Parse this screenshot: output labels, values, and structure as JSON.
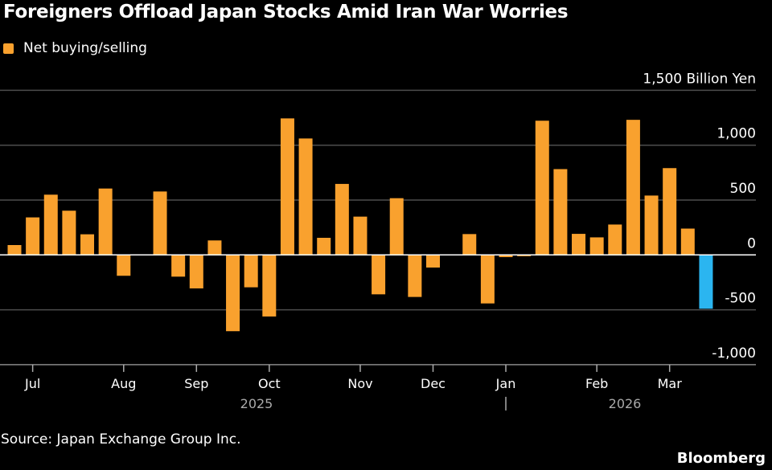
{
  "chart_data": {
    "type": "bar",
    "title": "Foreigners Offload Japan Stocks Amid Iran War Worries",
    "legend": [
      {
        "name": "Net buying/selling",
        "color": "#f9a12e"
      }
    ],
    "legend_placement": "top-left",
    "unit_label": "Billion Yen",
    "ylim": [
      -1000,
      1500
    ],
    "yticks": [
      -1000,
      -500,
      0,
      500,
      1000,
      1500
    ],
    "ytick_labels": [
      "-1,000",
      "-500",
      "0",
      "500",
      "1,000",
      "1,500 Billion Yen"
    ],
    "grid": true,
    "x_month_labels": [
      "Jul",
      "Aug",
      "Sep",
      "Oct",
      "Nov",
      "Dec",
      "Jan",
      "Feb",
      "Mar"
    ],
    "x_month_bar_index": [
      1,
      6,
      10,
      14,
      19,
      23,
      27,
      32,
      36
    ],
    "x_year_labels": [
      "2025",
      "2026"
    ],
    "year_separator": "|",
    "values": [
      90,
      342,
      549,
      403,
      188,
      605,
      -190,
      0,
      578,
      -198,
      -305,
      132,
      -695,
      -295,
      -561,
      1244,
      1061,
      156,
      647,
      349,
      -359,
      517,
      -383,
      -115,
      0,
      190,
      -442,
      -20,
      -12,
      1223,
      782,
      192,
      160,
      277,
      1231,
      541,
      791,
      240,
      -490
    ],
    "highlight_last": true,
    "colors": {
      "bar": "#f9a12e",
      "highlight": "#2bb5f0",
      "grid": "#4d4d4d",
      "zero": "#ffffff",
      "background": "#000000"
    }
  },
  "source": "Source: Japan Exchange Group Inc.",
  "brand": "Bloomberg"
}
